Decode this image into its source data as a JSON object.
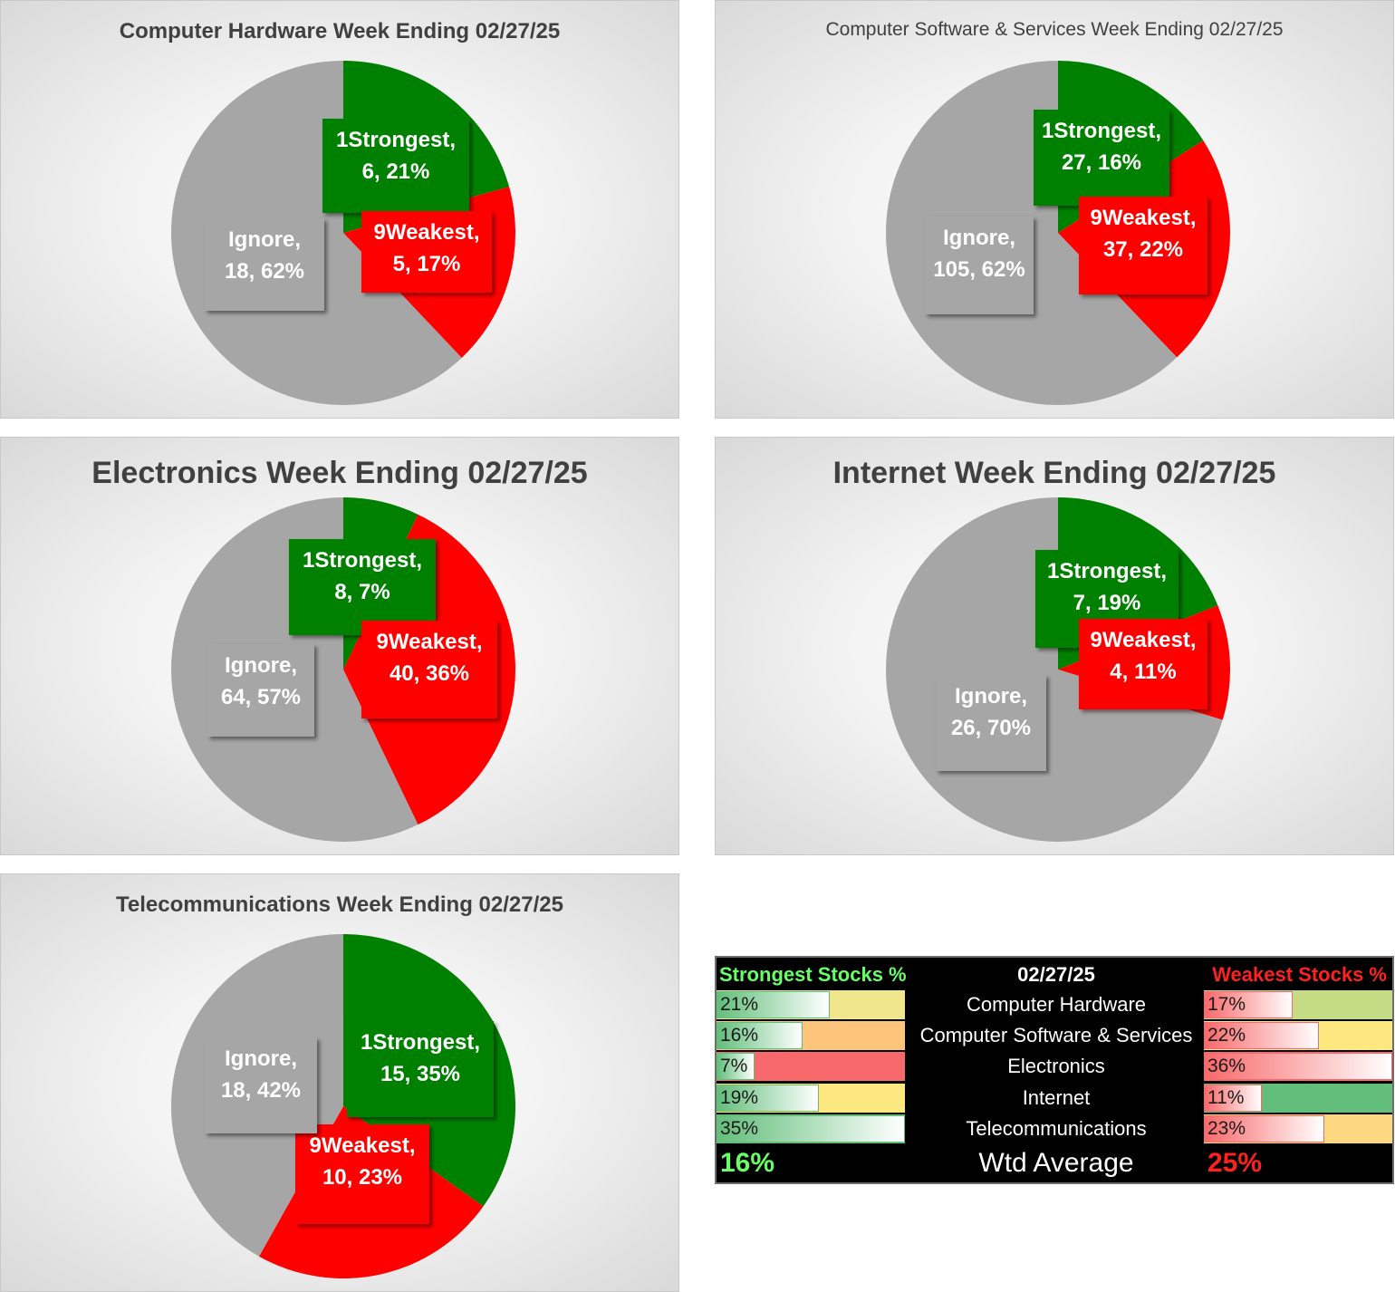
{
  "chart_data": [
    {
      "type": "pie",
      "title": "Computer Hardware Week Ending 02/27/25",
      "slices": [
        {
          "name": "1Strongest",
          "value": 6,
          "pct": "21%",
          "color": "#008000"
        },
        {
          "name": "9Weakest",
          "value": 5,
          "pct": "17%",
          "color": "#ff0000"
        },
        {
          "name": "Ignore",
          "value": 18,
          "pct": "62%",
          "color": "#a6a6a6"
        }
      ]
    },
    {
      "type": "pie",
      "title": "Computer Software & Services Week Ending 02/27/25",
      "slices": [
        {
          "name": "1Strongest",
          "value": 27,
          "pct": "16%",
          "color": "#008000"
        },
        {
          "name": "9Weakest",
          "value": 37,
          "pct": "22%",
          "color": "#ff0000"
        },
        {
          "name": "Ignore",
          "value": 105,
          "pct": "62%",
          "color": "#a6a6a6"
        }
      ]
    },
    {
      "type": "pie",
      "title": "Electronics Week Ending 02/27/25",
      "slices": [
        {
          "name": "1Strongest",
          "value": 8,
          "pct": "7%",
          "color": "#008000"
        },
        {
          "name": "9Weakest",
          "value": 40,
          "pct": "36%",
          "color": "#ff0000"
        },
        {
          "name": "Ignore",
          "value": 64,
          "pct": "57%",
          "color": "#a6a6a6"
        }
      ]
    },
    {
      "type": "pie",
      "title": "Internet Week Ending 02/27/25",
      "slices": [
        {
          "name": "1Strongest",
          "value": 7,
          "pct": "19%",
          "color": "#008000"
        },
        {
          "name": "9Weakest",
          "value": 4,
          "pct": "11%",
          "color": "#ff0000"
        },
        {
          "name": "Ignore",
          "value": 26,
          "pct": "70%",
          "color": "#a6a6a6"
        }
      ]
    },
    {
      "type": "pie",
      "title": "Telecommunications Week Ending 02/27/25",
      "slices": [
        {
          "name": "1Strongest",
          "value": 15,
          "pct": "35%",
          "color": "#008000"
        },
        {
          "name": "9Weakest",
          "value": 10,
          "pct": "23%",
          "color": "#ff0000"
        },
        {
          "name": "Ignore",
          "value": 18,
          "pct": "42%",
          "color": "#a6a6a6"
        }
      ]
    },
    {
      "type": "table",
      "title": "02/27/25",
      "columns": [
        "Strongest Stocks %",
        "02/27/25",
        "Weakest Stocks %"
      ],
      "rows": [
        {
          "sector": "Computer Hardware",
          "strongest": "21%",
          "strongest_value": 21,
          "weakest": "17%",
          "weakest_value": 17,
          "strong_bg": "#f0e68c",
          "weak_bg": "#c4dc84"
        },
        {
          "sector": "Computer Software & Services",
          "strongest": "16%",
          "strongest_value": 16,
          "weakest": "22%",
          "weakest_value": 22,
          "strong_bg": "#fdc47c",
          "weak_bg": "#fde880"
        },
        {
          "sector": "Electronics",
          "strongest": "7%",
          "strongest_value": 7,
          "weakest": "36%",
          "weakest_value": 36,
          "strong_bg": "#f8696b",
          "weak_bg": "#f8696b"
        },
        {
          "sector": "Internet",
          "strongest": "19%",
          "strongest_value": 19,
          "weakest": "11%",
          "weakest_value": 11,
          "strong_bg": "#fde880",
          "weak_bg": "#63be7b"
        },
        {
          "sector": "Telecommunications",
          "strongest": "35%",
          "strongest_value": 35,
          "weakest": "23%",
          "weakest_value": 23,
          "strong_bg": "#63be7b",
          "weak_bg": "#fdd880"
        }
      ],
      "footer": {
        "label": "Wtd Average",
        "strongest": "16%",
        "weakest": "25%"
      }
    }
  ]
}
